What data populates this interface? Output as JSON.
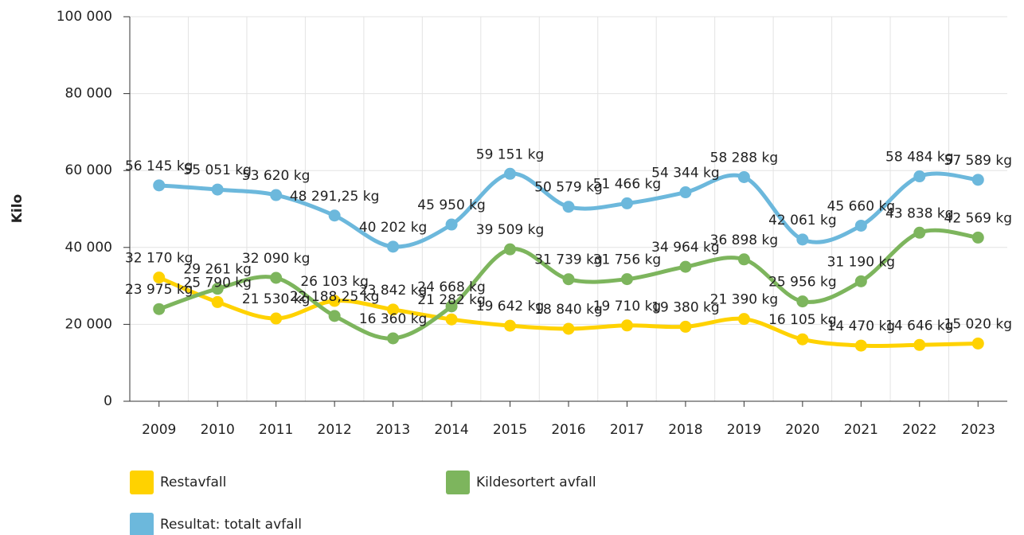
{
  "chart_data": {
    "type": "line",
    "y_label": "Kilo",
    "categories": [
      "2009",
      "2010",
      "2011",
      "2012",
      "2013",
      "2014",
      "2015",
      "2016",
      "2017",
      "2018",
      "2019",
      "2020",
      "2021",
      "2022",
      "2023"
    ],
    "series": [
      {
        "name": "Restavfall",
        "color": "#ffd200",
        "values": [
          32170,
          25790,
          21530,
          26103,
          23842,
          21282,
          19642,
          18840,
          19710,
          19380,
          21390,
          16105,
          14470,
          14646,
          15020
        ],
        "value_labels": [
          "32 170 kg",
          "25 790 kg",
          "21 530 kg",
          "26 103 kg",
          "23 842 kg",
          "21 282 kg",
          "19 642 kg",
          "18 840 kg",
          "19 710 kg",
          "19 380 kg",
          "21 390 kg",
          "16 105 kg",
          "14 470 kg",
          "14 646 kg",
          "15 020 kg"
        ]
      },
      {
        "name": "Kildesortert avfall",
        "color": "#7db55d",
        "values": [
          23975,
          29261,
          32090,
          22188.25,
          16360,
          24668,
          39509,
          31739,
          31756,
          34964,
          36898,
          25956,
          31190,
          43838,
          42569
        ],
        "value_labels": [
          "23 975 kg",
          "29 261 kg",
          "32 090 kg",
          "22 188,25 kg",
          "16 360 kg",
          "24 668 kg",
          "39 509 kg",
          "31 739 kg",
          "31 756 kg",
          "34 964 kg",
          "36 898 kg",
          "25 956 kg",
          "31 190 kg",
          "43 838 kg",
          "42 569 kg"
        ]
      },
      {
        "name": "Resultat: totalt avfall",
        "color": "#6cb8dc",
        "values": [
          56145,
          55051,
          53620,
          48291.25,
          40202,
          45950,
          59151,
          50579,
          51466,
          54344,
          58288,
          42061,
          45660,
          58484,
          57589
        ],
        "value_labels": [
          "56 145 kg",
          "55 051 kg",
          "53 620 kg",
          "48 291,25 kg",
          "40 202 kg",
          "45 950 kg",
          "59 151 kg",
          "50 579 kg",
          "51 466 kg",
          "54 344 kg",
          "58 288 kg",
          "42 061 kg",
          "45 660 kg",
          "58 484 kg",
          "57 589 kg"
        ]
      }
    ],
    "ylim": [
      0,
      100000
    ],
    "yticks": [
      0,
      {
        "value": 20000,
        "label": "20 000"
      },
      {
        "value": 40000,
        "label": "40 000"
      },
      {
        "value": 60000,
        "label": "60 000"
      },
      {
        "value": 80000,
        "label": "80 000"
      },
      {
        "value": 100000,
        "label": "100 000"
      }
    ],
    "grid": true
  }
}
